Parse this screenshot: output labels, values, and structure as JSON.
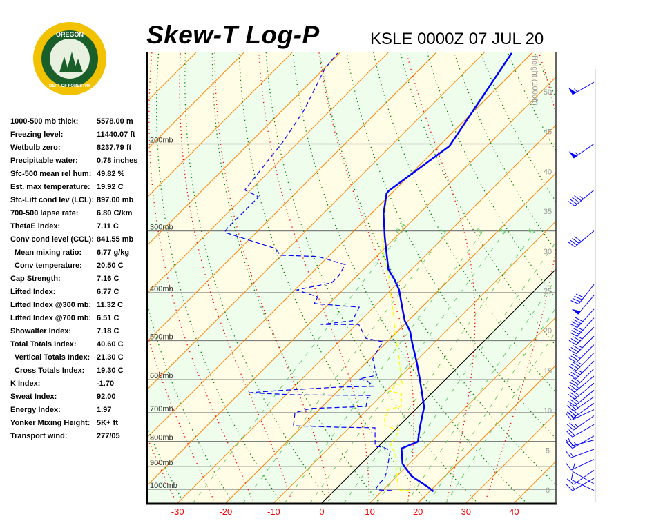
{
  "header": {
    "title": "Skew-T Log-P",
    "station": "KSLE 0000Z 07 JUL 20"
  },
  "logo": {
    "text_top": "OREGON",
    "text_bottom": "DEPARTMENT OF FORESTRY",
    "ring_color": "#f2c200",
    "field_color": "#1a5e2a"
  },
  "stats": [
    {
      "label": "1000-500 mb thick:",
      "value": "5578.00 m"
    },
    {
      "label": "Freezing level:",
      "value": "11440.07 ft"
    },
    {
      "label": "Wetbulb zero:",
      "value": "8237.79 ft"
    },
    {
      "label": "Precipitable water:",
      "value": "0.78 inches"
    },
    {
      "label": "Sfc-500 mean rel hum:",
      "value": "49.82 %"
    },
    {
      "label": "Est. max temperature:",
      "value": "19.92 C"
    },
    {
      "label": "Sfc-Lift cond lev (LCL):",
      "value": "897.00 mb"
    },
    {
      "label": "700-500 lapse rate:",
      "value": "6.80 C/km"
    },
    {
      "label": "ThetaE index:",
      "value": "7.11 C"
    },
    {
      "label": "Conv cond level (CCL):",
      "value": "841.55 mb"
    },
    {
      "label": "Mean mixing ratio:",
      "value": "6.77 g/kg",
      "indent": true
    },
    {
      "label": "Conv temperature:",
      "value": "20.50 C",
      "indent": true
    },
    {
      "label": "Cap Strength:",
      "value": "7.16 C"
    },
    {
      "label": "Lifted Index:",
      "value": "6.77 C"
    },
    {
      "label": "Lifted Index @300 mb:",
      "value": "11.32 C"
    },
    {
      "label": "Lifted Index @700 mb:",
      "value": "6.51 C"
    },
    {
      "label": "Showalter Index:",
      "value": "7.18 C"
    },
    {
      "label": "Total Totals Index:",
      "value": "40.60 C"
    },
    {
      "label": "Vertical Totals Index:",
      "value": "21.30 C",
      "indent": true
    },
    {
      "label": "Cross Totals Index:",
      "value": "19.30 C",
      "indent": true
    },
    {
      "label": "K Index:",
      "value": "-1.70"
    },
    {
      "label": "Sweat Index:",
      "value": "92.00"
    },
    {
      "label": "Energy Index:",
      "value": "1.97"
    },
    {
      "label": "Yonker Mixing Height:",
      "value": "5K+ ft"
    },
    {
      "label": "Transport wind:",
      "value": "277/05"
    }
  ],
  "chart_data": {
    "type": "skew-t",
    "title": "Skew-T Log-P",
    "x_ticks": [
      -30,
      -20,
      -10,
      0,
      10,
      20,
      30,
      40
    ],
    "pressure_levels": [
      {
        "p": 1000,
        "label": "1000mb"
      },
      {
        "p": 900,
        "label": "900mb"
      },
      {
        "p": 800,
        "label": "800mb"
      },
      {
        "p": 700,
        "label": "700mb"
      },
      {
        "p": 600,
        "label": "600mb"
      },
      {
        "p": 500,
        "label": "500mb"
      },
      {
        "p": 400,
        "label": "400mb"
      },
      {
        "p": 300,
        "label": "300mb"
      },
      {
        "p": 200,
        "label": "200mb"
      }
    ],
    "pressure_range_mb": [
      1066,
      131
    ],
    "height_axis": {
      "label": "Height (1000ft)",
      "ticks": [
        0,
        5,
        10,
        15,
        20,
        25,
        30,
        35,
        40,
        45,
        50
      ]
    },
    "mixing_ratio_lines": [
      {
        "w": 0.4,
        "label": "0.4"
      },
      {
        "w": 1,
        "label": "1"
      },
      {
        "w": 2,
        "label": "2"
      },
      {
        "w": 3,
        "label": "3"
      },
      {
        "w": 5,
        "label": "5"
      },
      {
        "w": 8,
        "label": ""
      },
      {
        "w": 12,
        "label": ""
      },
      {
        "w": 16,
        "label": ""
      },
      {
        "w": 20,
        "label": ""
      }
    ],
    "colors": {
      "temperature": "#0000ff",
      "dewpoint": "#0000ff",
      "wetbulb": "#ffff00",
      "isotherm": "#ff8000",
      "zero_isotherm": "#000000",
      "dry_adiabat": "#008000",
      "moist_adiabat": "#ff0000",
      "mixing_ratio": "#66cc66",
      "band_a": "#fffde6",
      "band_b": "#eefdec",
      "tick_label": "#ff0000"
    },
    "temperature": [
      [
        1010,
        20.8
      ],
      [
        990,
        18.8
      ],
      [
        941,
        13.1
      ],
      [
        888,
        8.6
      ],
      [
        827,
        5.2
      ],
      [
        801,
        7.2
      ],
      [
        751,
        4.7
      ],
      [
        682,
        1.3
      ],
      [
        600,
        -5.3
      ],
      [
        553,
        -9.6
      ],
      [
        507,
        -14.4
      ],
      [
        479,
        -17.4
      ],
      [
        456,
        -20.7
      ],
      [
        432,
        -23.6
      ],
      [
        395,
        -28.3
      ],
      [
        376,
        -31.5
      ],
      [
        359,
        -34.8
      ],
      [
        310,
        -42.1
      ],
      [
        277,
        -47.4
      ],
      [
        252,
        -51.0
      ],
      [
        249,
        -51.1
      ],
      [
        202,
        -47.8
      ],
      [
        131,
        -54.2
      ]
    ],
    "dewpoint": [
      [
        1006,
        11.9
      ],
      [
        1003,
        8.6
      ],
      [
        994,
        8.2
      ],
      [
        972,
        7.9
      ],
      [
        950,
        7.9
      ],
      [
        920,
        6.9
      ],
      [
        874,
        5.0
      ],
      [
        835,
        3.3
      ],
      [
        822,
        1.1
      ],
      [
        819,
        -0.7
      ],
      [
        751,
        -4.6
      ],
      [
        749,
        -12.4
      ],
      [
        744,
        -22.0
      ],
      [
        700,
        -24.4
      ],
      [
        686,
        -22.0
      ],
      [
        680,
        -10.9
      ],
      [
        654,
        -12.4
      ],
      [
        646,
        -12.1
      ],
      [
        644,
        -28.2
      ],
      [
        638,
        -38.2
      ],
      [
        631,
        -32.2
      ],
      [
        621,
        -20.3
      ],
      [
        619,
        -13.6
      ],
      [
        604,
        -15.9
      ],
      [
        598,
        -18.1
      ],
      [
        588,
        -15.2
      ],
      [
        545,
        -19.4
      ],
      [
        519,
        -20.4
      ],
      [
        503,
        -20.8
      ],
      [
        495,
        -25.1
      ],
      [
        464,
        -29.5
      ],
      [
        464,
        -37.4
      ],
      [
        456,
        -31.6
      ],
      [
        428,
        -33.0
      ],
      [
        421,
        -43.1
      ],
      [
        408,
        -43.8
      ],
      [
        395,
        -49.6
      ],
      [
        382,
        -43.8
      ],
      [
        370,
        -43.8
      ],
      [
        351,
        -44.8
      ],
      [
        338,
        -52.2
      ],
      [
        336,
        -60.3
      ],
      [
        326,
        -62.5
      ],
      [
        302,
        -76.6
      ],
      [
        296,
        -76.9
      ],
      [
        256,
        -76.9
      ],
      [
        248,
        -81.2
      ],
      [
        214,
        -82.6
      ],
      [
        198,
        -83.3
      ],
      [
        171,
        -85.5
      ],
      [
        141,
        -89.8
      ],
      [
        131,
        -90.4
      ]
    ],
    "wetbulb": [
      [
        1006,
        15.7
      ],
      [
        1003,
        13.2
      ],
      [
        932,
        9.6
      ],
      [
        874,
        6.5
      ],
      [
        846,
        5.0
      ],
      [
        827,
        3.3
      ],
      [
        809,
        1.9
      ],
      [
        783,
        1.6
      ],
      [
        758,
        0.7
      ],
      [
        744,
        -3.0
      ],
      [
        720,
        -4.5
      ],
      [
        689,
        -5.7
      ],
      [
        680,
        -3.6
      ],
      [
        640,
        -6.2
      ],
      [
        634,
        -9.1
      ],
      [
        613,
        -9.3
      ],
      [
        613,
        -8.0
      ],
      [
        581,
        -10.8
      ],
      [
        545,
        -13.9
      ],
      [
        511,
        -17.2
      ],
      [
        479,
        -20.5
      ],
      [
        449,
        -23.7
      ],
      [
        421,
        -26.9
      ],
      [
        395,
        -30.2
      ],
      [
        370,
        -33.3
      ],
      [
        336,
        -38.8
      ],
      [
        305,
        -43.0
      ],
      [
        268,
        -48.4
      ],
      [
        252,
        -51.0
      ]
    ],
    "winds": [
      {
        "p": 1005,
        "dir": 295,
        "spd": 10
      },
      {
        "p": 975,
        "dir": 300,
        "spd": 10
      },
      {
        "p": 950,
        "dir": 240,
        "spd": 15
      },
      {
        "p": 915,
        "dir": 235,
        "spd": 10
      },
      {
        "p": 870,
        "dir": 245,
        "spd": 10
      },
      {
        "p": 830,
        "dir": 250,
        "spd": 15
      },
      {
        "p": 795,
        "dir": 255,
        "spd": 20
      },
      {
        "p": 780,
        "dir": 240,
        "spd": 25
      },
      {
        "p": 740,
        "dir": 240,
        "spd": 20
      },
      {
        "p": 710,
        "dir": 235,
        "spd": 25
      },
      {
        "p": 690,
        "dir": 245,
        "spd": 25
      },
      {
        "p": 670,
        "dir": 235,
        "spd": 30
      },
      {
        "p": 650,
        "dir": 235,
        "spd": 25
      },
      {
        "p": 630,
        "dir": 230,
        "spd": 30
      },
      {
        "p": 610,
        "dir": 230,
        "spd": 30
      },
      {
        "p": 590,
        "dir": 230,
        "spd": 30
      },
      {
        "p": 570,
        "dir": 225,
        "spd": 30
      },
      {
        "p": 550,
        "dir": 225,
        "spd": 35
      },
      {
        "p": 530,
        "dir": 225,
        "spd": 35
      },
      {
        "p": 510,
        "dir": 225,
        "spd": 30
      },
      {
        "p": 490,
        "dir": 225,
        "spd": 35
      },
      {
        "p": 470,
        "dir": 225,
        "spd": 35
      },
      {
        "p": 450,
        "dir": 222,
        "spd": 35
      },
      {
        "p": 432,
        "dir": 222,
        "spd": 40
      },
      {
        "p": 405,
        "dir": 220,
        "spd": 50
      },
      {
        "p": 385,
        "dir": 218,
        "spd": 40
      },
      {
        "p": 300,
        "dir": 230,
        "spd": 40
      },
      {
        "p": 248,
        "dir": 230,
        "spd": 45
      },
      {
        "p": 200,
        "dir": 235,
        "spd": 55
      },
      {
        "p": 150,
        "dir": 240,
        "spd": 55
      }
    ]
  }
}
